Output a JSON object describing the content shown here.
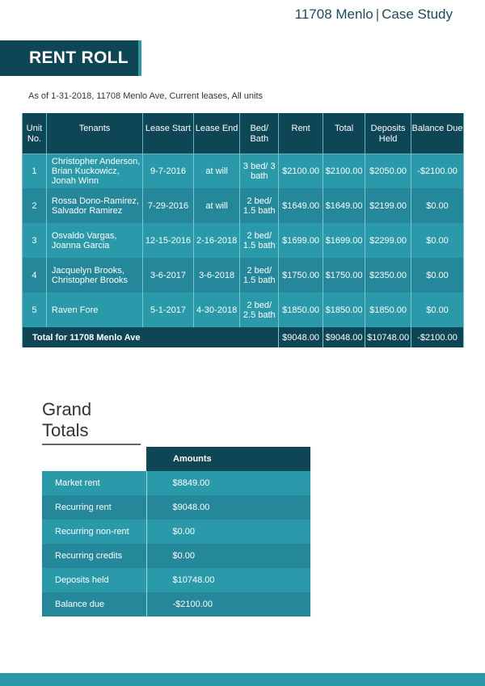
{
  "header": {
    "property": "11708 Menlo",
    "separator": "|",
    "section": "Case Study"
  },
  "banner": {
    "title": "RENT ROLL"
  },
  "subtitle": "As of 1-31-2018, 11708 Menlo Ave, Current  leases, All units",
  "rent_roll": {
    "columns": [
      "Unit No.",
      "Tenants",
      "Lease Start",
      "Lease End",
      "Bed/ Bath",
      "Rent",
      "Total",
      "Deposits Held",
      "Balance Due"
    ],
    "rows": [
      {
        "unit": "1",
        "tenants": "Christopher Anderson, Brian Kuckowicz, Jonah Winn",
        "start": "9-7-2016",
        "end": "at will",
        "bedbath": "3 bed/ 3 bath",
        "rent": "$2100.00",
        "total": "$2100.00",
        "deposits": "$2050.00",
        "balance": "-$2100.00"
      },
      {
        "unit": "2",
        "tenants": "Rossa Dono-Ramirez, Salvador Ramirez",
        "start": "7-29-2016",
        "end": "at will",
        "bedbath": "2 bed/ 1.5 bath",
        "rent": "$1649.00",
        "total": "$1649.00",
        "deposits": "$2199.00",
        "balance": "$0.00"
      },
      {
        "unit": "3",
        "tenants": "Osvaldo Vargas, Joanna Garcia",
        "start": "12-15-2016",
        "end": "2-16-2018",
        "bedbath": "2 bed/ 1.5 bath",
        "rent": "$1699.00",
        "total": "$1699.00",
        "deposits": "$2299.00",
        "balance": "$0.00"
      },
      {
        "unit": "4",
        "tenants": "Jacquelyn Brooks, Christopher Brooks",
        "start": "3-6-2017",
        "end": "3-6-2018",
        "bedbath": "2 bed/ 1.5 bath",
        "rent": "$1750.00",
        "total": "$1750.00",
        "deposits": "$2350.00",
        "balance": "$0.00"
      },
      {
        "unit": "5",
        "tenants": "Raven Fore",
        "start": "5-1-2017",
        "end": "4-30-2018",
        "bedbath": "2 bed/ 2.5 bath",
        "rent": "$1850.00",
        "total": "$1850.00",
        "deposits": "$1850.00",
        "balance": "$0.00"
      }
    ],
    "total": {
      "label": "Total for 11708 Menlo Ave",
      "rent": "$9048.00",
      "total": "$9048.00",
      "deposits": "$10748.00",
      "balance": "-$2100.00"
    }
  },
  "grand_totals": {
    "title": "Grand Totals",
    "header": "Amounts",
    "rows": [
      {
        "label": "Market rent",
        "value": "$8849.00"
      },
      {
        "label": "Recurring rent",
        "value": "$9048.00"
      },
      {
        "label": "Recurring non-rent",
        "value": "$0.00"
      },
      {
        "label": "Recurring credits",
        "value": "$0.00"
      },
      {
        "label": "Deposits held",
        "value": "$10748.00"
      },
      {
        "label": "Balance due",
        "value": "-$2100.00"
      }
    ]
  },
  "colors": {
    "dark": "#0f4656",
    "teal": "#2a9aab",
    "teal_alt": "#24889a"
  }
}
